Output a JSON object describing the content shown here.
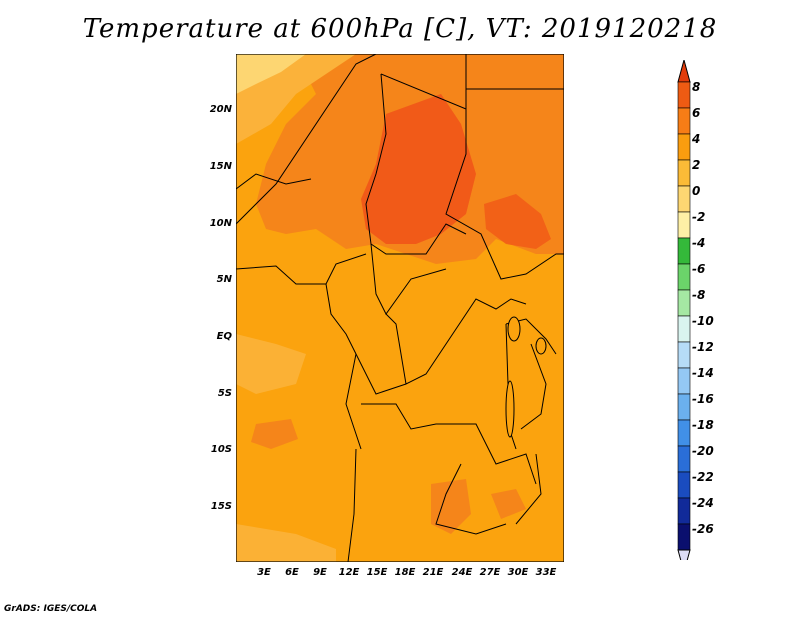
{
  "title": "Temperature at 600hPa [C], VT: 2019120218",
  "credit": "GrADS: IGES/COLA",
  "lat_labels": [
    "20N",
    "15N",
    "10N",
    "5N",
    "EQ",
    "5S",
    "10S",
    "15S"
  ],
  "lon_labels": [
    "3E",
    "6E",
    "9E",
    "12E",
    "15E",
    "18E",
    "21E",
    "24E",
    "27E",
    "30E",
    "33E"
  ],
  "colorbar": {
    "levels": [
      "8",
      "6",
      "4",
      "2",
      "0",
      "-2",
      "-4",
      "-6",
      "-8",
      "-10",
      "-12",
      "-14",
      "-16",
      "-18",
      "-20",
      "-22",
      "-24",
      "-26"
    ],
    "colors": [
      "#e23c0b",
      "#ee5b13",
      "#f77d16",
      "#fa9d0f",
      "#fbbb37",
      "#fdd772",
      "#fef0a6",
      "#34b93a",
      "#6bd46a",
      "#a5e8a3",
      "#d9f4ef",
      "#b6dcf7",
      "#94c8f4",
      "#6bb0ee",
      "#4190e7",
      "#2a6ed8",
      "#1a4cbf",
      "#112a99",
      "#0a0f6e"
    ],
    "bottom_cap_color": "#dcdcf5"
  },
  "colors": {
    "ocean_base": "#fba30e",
    "warm_zone": "#f5851a",
    "hot_core": "#f15a18",
    "cool_patch": "#fbb23a",
    "coldest": "#fdd672",
    "border": "#000000"
  }
}
